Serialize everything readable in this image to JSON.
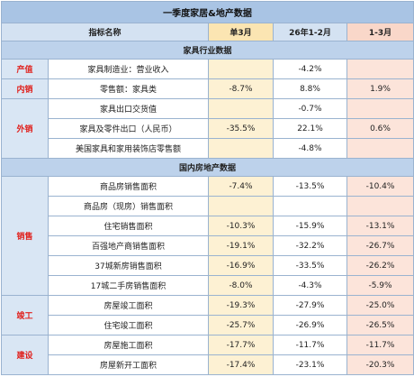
{
  "title": "一季度家居&地产数据",
  "columns": {
    "name": "指标名称",
    "m1": "单3月",
    "ytd": "26年1-2月",
    "q1": "1-3月"
  },
  "sections": {
    "furniture": "家具行业数据",
    "property": "国内房地产数据"
  },
  "categories": {
    "output": "产值",
    "domestic": "内销",
    "export": "外销",
    "sales": "销售",
    "completion": "竣工",
    "construction": "建设"
  },
  "rows": [
    {
      "name": "家具制造业：营业收入",
      "m1": "",
      "ytd": "-4.2%",
      "q1": ""
    },
    {
      "name": "零售额：家具类",
      "m1": "-8.7%",
      "ytd": "8.8%",
      "q1": "1.9%"
    },
    {
      "name": "家具出口交货值",
      "m1": "",
      "ytd": "-0.7%",
      "q1": ""
    },
    {
      "name": "家具及零件出口（人民币）",
      "m1": "-35.5%",
      "ytd": "22.1%",
      "q1": "0.6%"
    },
    {
      "name": "美国家具和家用装饰店零售额",
      "m1": "",
      "ytd": "-4.8%",
      "q1": ""
    },
    {
      "name": "商品房销售面积",
      "m1": "-7.4%",
      "ytd": "-13.5%",
      "q1": "-10.4%"
    },
    {
      "name": "商品房（现房）销售面积",
      "m1": "",
      "ytd": "",
      "q1": ""
    },
    {
      "name": "住宅销售面积",
      "m1": "-10.3%",
      "ytd": "-15.9%",
      "q1": "-13.1%"
    },
    {
      "name": "百强地产商销售面积",
      "m1": "-19.1%",
      "ytd": "-32.2%",
      "q1": "-26.7%"
    },
    {
      "name": "37城新房销售面积",
      "m1": "-16.9%",
      "ytd": "-33.5%",
      "q1": "-26.2%"
    },
    {
      "name": "17城二手房销售面积",
      "m1": "-8.0%",
      "ytd": "-4.3%",
      "q1": "-5.9%"
    },
    {
      "name": "房屋竣工面积",
      "m1": "-19.3%",
      "ytd": "-27.9%",
      "q1": "-25.0%"
    },
    {
      "name": "住宅竣工面积",
      "m1": "-25.7%",
      "ytd": "-26.9%",
      "q1": "-26.5%"
    },
    {
      "name": "房屋施工面积",
      "m1": "-17.7%",
      "ytd": "-11.7%",
      "q1": "-11.7%"
    },
    {
      "name": "房屋新开工面积",
      "m1": "-17.4%",
      "ytd": "-23.1%",
      "q1": "-20.3%"
    }
  ],
  "colors": {
    "header_blue": "#a9c4e4",
    "category_red": "#e0211d",
    "m1_fill": "#fdf1d3",
    "q1_fill": "#fce4da"
  }
}
